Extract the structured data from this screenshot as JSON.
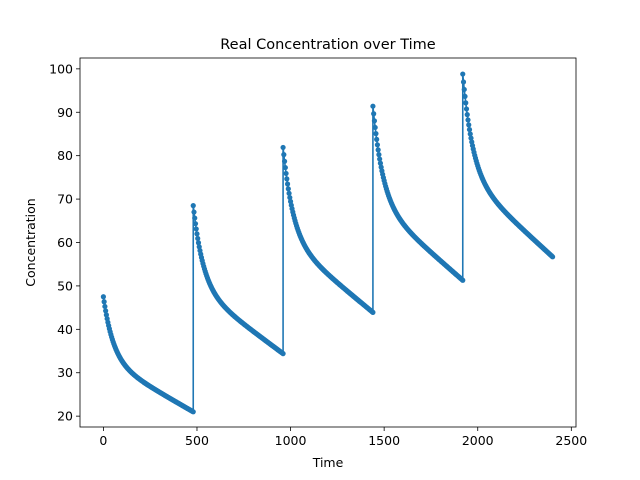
{
  "chart_data": {
    "type": "line",
    "title": "Real Concentration over Time",
    "xlabel": "Time",
    "ylabel": "Concentration",
    "xlim": [
      -125,
      2525
    ],
    "ylim": [
      17.5,
      102.5
    ],
    "xticks": [
      0,
      500,
      1000,
      1500,
      2000,
      2500
    ],
    "yticks": [
      20,
      30,
      40,
      50,
      60,
      70,
      80,
      90,
      100
    ],
    "grid": false,
    "legend": "none",
    "series_color": "#1f77b4",
    "marker": "point",
    "dose_interval": 480,
    "segments": [
      {
        "t_start": 0,
        "t_end": 480,
        "peak": 47.5,
        "trough": 21.0
      },
      {
        "t_start": 480,
        "t_end": 960,
        "peak": 68.5,
        "trough": 34.4
      },
      {
        "t_start": 960,
        "t_end": 1440,
        "peak": 81.9,
        "trough": 43.9
      },
      {
        "t_start": 1440,
        "t_end": 1920,
        "peak": 91.4,
        "trough": 51.3
      },
      {
        "t_start": 1920,
        "t_end": 2400,
        "peak": 98.8,
        "trough": 56.7
      }
    ]
  }
}
